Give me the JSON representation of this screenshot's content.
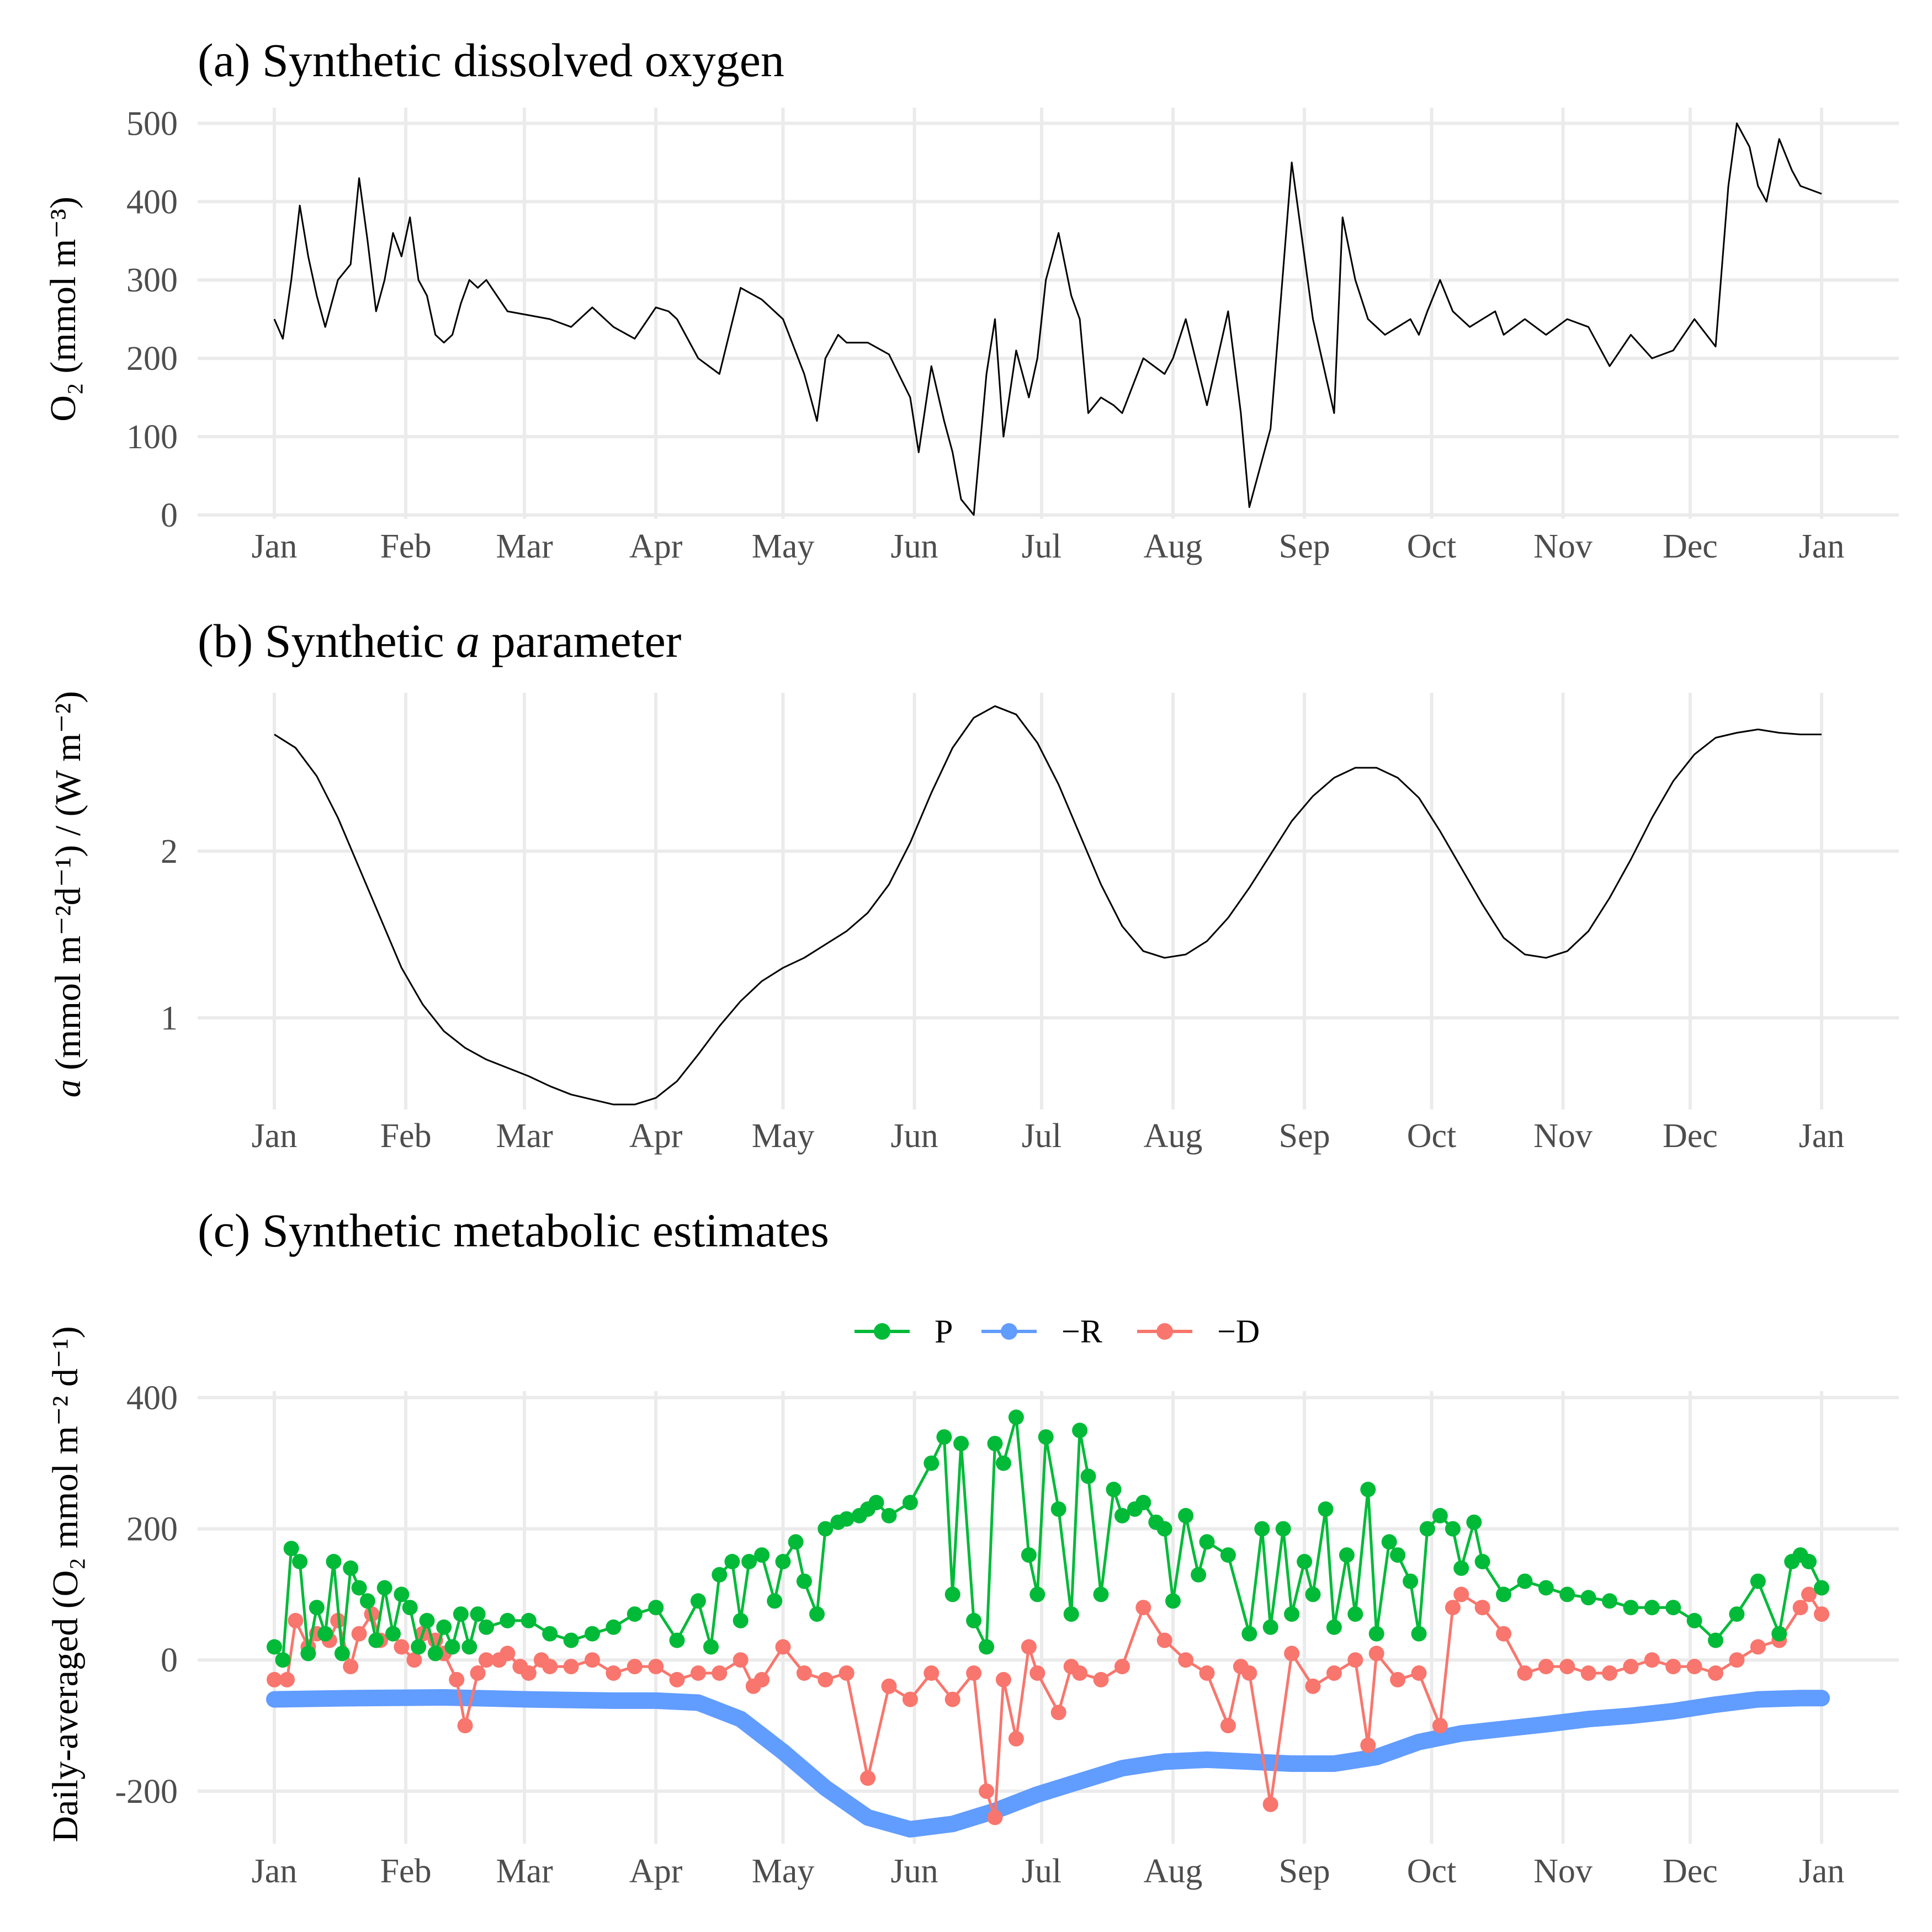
{
  "months": [
    "Jan",
    "Feb",
    "Mar",
    "Apr",
    "May",
    "Jun",
    "Jul",
    "Aug",
    "Sep",
    "Oct",
    "Nov",
    "Dec",
    "Jan"
  ],
  "colors": {
    "P": "#00BA38",
    "R": "#619CFF",
    "D": "#F8766D",
    "line": "#000000"
  },
  "panels": [
    {
      "title": "(a) Synthetic dissolved oxygen",
      "ylabel": "O₂ (mmol m⁻³)"
    },
    {
      "title_prefix": "(b) Synthetic ",
      "title_italic": "a",
      "title_suffix": " parameter",
      "ylabel_italic": "a",
      "ylabel": " (mmol m⁻²d⁻¹) / (W m⁻²)"
    },
    {
      "title": "(c) Synthetic metabolic estimates",
      "ylabel": "Daily-averaged (O₂ mmol m⁻² d⁻¹)"
    }
  ],
  "legend": [
    "P",
    "−R",
    "−D"
  ],
  "chart_data": [
    {
      "type": "line",
      "title": "(a) Synthetic dissolved oxygen",
      "ylabel": "O₂ (mmol m⁻³)",
      "yticks": [
        0,
        100,
        200,
        300,
        400,
        500
      ],
      "ylim": [
        -5,
        520
      ],
      "xlim": [
        0,
        365
      ],
      "series": [
        {
          "x": [
            0,
            2,
            4,
            6,
            8,
            10,
            12,
            15,
            18,
            20,
            22,
            24,
            26,
            28,
            30,
            32,
            34,
            36,
            38,
            40,
            42,
            44,
            46,
            48,
            50,
            55,
            60,
            65,
            70,
            75,
            80,
            85,
            90,
            93,
            95,
            100,
            105,
            110,
            115,
            120,
            125,
            128,
            130,
            133,
            135,
            140,
            145,
            150,
            152,
            155,
            158,
            160,
            162,
            165,
            168,
            170,
            172,
            175,
            178,
            180,
            182,
            185,
            188,
            190,
            192,
            195,
            198,
            200,
            205,
            210,
            212,
            215,
            220,
            225,
            228,
            230,
            235,
            240,
            245,
            250,
            252,
            255,
            258,
            262,
            265,
            268,
            270,
            272,
            275,
            278,
            280,
            282,
            285,
            288,
            290,
            295,
            300,
            305,
            310,
            315,
            320,
            325,
            330,
            335,
            340,
            343,
            345,
            348,
            350,
            352,
            355,
            358,
            360,
            365
          ],
          "y": [
            250,
            225,
            300,
            395,
            330,
            280,
            240,
            300,
            320,
            430,
            350,
            260,
            300,
            360,
            330,
            380,
            300,
            280,
            230,
            220,
            230,
            270,
            300,
            290,
            300,
            260,
            255,
            250,
            240,
            265,
            240,
            225,
            265,
            260,
            250,
            200,
            180,
            290,
            275,
            250,
            180,
            120,
            200,
            230,
            220,
            220,
            205,
            150,
            80,
            190,
            120,
            80,
            20,
            0,
            180,
            250,
            100,
            210,
            150,
            200,
            300,
            360,
            280,
            250,
            130,
            150,
            140,
            130,
            200,
            180,
            200,
            250,
            140,
            260,
            130,
            10,
            110,
            450,
            250,
            130,
            380,
            300,
            250,
            230,
            240,
            250,
            230,
            260,
            300,
            260,
            250,
            240,
            250,
            260,
            230,
            250,
            230,
            250,
            240,
            190,
            230,
            200,
            210,
            250,
            215,
            420,
            500,
            470,
            420,
            400,
            480,
            440,
            420,
            410
          ]
        }
      ]
    },
    {
      "type": "line",
      "title": "(b) Synthetic a parameter",
      "ylabel": "a (mmol m⁻²d⁻¹) / (W m⁻²)",
      "yticks": [
        1,
        2
      ],
      "ylim": [
        0.45,
        2.95
      ],
      "xlim": [
        0,
        365
      ],
      "series": [
        {
          "x": [
            0,
            5,
            10,
            15,
            20,
            25,
            30,
            35,
            40,
            45,
            50,
            55,
            60,
            65,
            70,
            75,
            80,
            85,
            90,
            95,
            100,
            105,
            110,
            115,
            120,
            125,
            130,
            135,
            140,
            145,
            150,
            155,
            160,
            165,
            170,
            175,
            180,
            185,
            190,
            195,
            200,
            205,
            210,
            215,
            220,
            225,
            230,
            235,
            240,
            245,
            250,
            255,
            260,
            265,
            270,
            275,
            280,
            285,
            290,
            295,
            300,
            305,
            310,
            315,
            320,
            325,
            330,
            335,
            340,
            345,
            350,
            355,
            360,
            365
          ],
          "y": [
            2.7,
            2.62,
            2.45,
            2.2,
            1.9,
            1.6,
            1.3,
            1.08,
            0.92,
            0.82,
            0.75,
            0.7,
            0.65,
            0.59,
            0.54,
            0.51,
            0.48,
            0.48,
            0.52,
            0.62,
            0.78,
            0.95,
            1.1,
            1.22,
            1.3,
            1.36,
            1.44,
            1.52,
            1.63,
            1.8,
            2.05,
            2.35,
            2.62,
            2.8,
            2.87,
            2.82,
            2.65,
            2.4,
            2.1,
            1.8,
            1.55,
            1.4,
            1.36,
            1.38,
            1.46,
            1.6,
            1.78,
            1.98,
            2.18,
            2.33,
            2.44,
            2.5,
            2.5,
            2.44,
            2.32,
            2.12,
            1.9,
            1.68,
            1.48,
            1.38,
            1.36,
            1.4,
            1.52,
            1.72,
            1.95,
            2.2,
            2.42,
            2.58,
            2.68,
            2.71,
            2.73,
            2.71,
            2.7,
            2.7
          ]
        }
      ]
    },
    {
      "type": "line",
      "title": "(c) Synthetic metabolic estimates",
      "ylabel": "Daily-averaged (O₂ mmol m⁻² d⁻¹)",
      "yticks": [
        -200,
        0,
        200,
        400
      ],
      "ylim": [
        -280,
        410
      ],
      "xlim": [
        0,
        365
      ],
      "series": [
        {
          "name": "P",
          "x": [
            0,
            2,
            4,
            6,
            8,
            10,
            12,
            14,
            16,
            18,
            20,
            22,
            24,
            26,
            28,
            30,
            32,
            34,
            36,
            38,
            40,
            42,
            44,
            46,
            48,
            50,
            55,
            60,
            65,
            70,
            75,
            80,
            85,
            90,
            95,
            100,
            103,
            105,
            108,
            110,
            112,
            115,
            118,
            120,
            123,
            125,
            128,
            130,
            133,
            135,
            138,
            140,
            142,
            145,
            150,
            155,
            158,
            160,
            162,
            165,
            168,
            170,
            172,
            175,
            178,
            180,
            182,
            185,
            188,
            190,
            192,
            195,
            198,
            200,
            203,
            205,
            208,
            210,
            212,
            215,
            218,
            220,
            225,
            230,
            233,
            235,
            238,
            240,
            243,
            245,
            248,
            250,
            253,
            255,
            258,
            260,
            263,
            265,
            268,
            270,
            272,
            275,
            278,
            280,
            283,
            285,
            290,
            295,
            300,
            305,
            310,
            315,
            320,
            325,
            330,
            335,
            340,
            345,
            350,
            355,
            358,
            360,
            362,
            365
          ],
          "y": [
            20,
            0,
            170,
            150,
            10,
            80,
            40,
            150,
            10,
            140,
            110,
            90,
            30,
            110,
            40,
            100,
            80,
            20,
            60,
            10,
            50,
            20,
            70,
            20,
            70,
            50,
            60,
            60,
            40,
            30,
            40,
            50,
            70,
            80,
            30,
            90,
            20,
            130,
            150,
            60,
            150,
            160,
            90,
            150,
            180,
            120,
            70,
            200,
            210,
            215,
            220,
            230,
            240,
            220,
            240,
            300,
            340,
            100,
            330,
            60,
            20,
            330,
            300,
            370,
            160,
            100,
            340,
            230,
            70,
            350,
            280,
            100,
            260,
            220,
            230,
            240,
            210,
            200,
            90,
            220,
            130,
            180,
            160,
            40,
            200,
            50,
            200,
            70,
            150,
            100,
            230,
            50,
            160,
            70,
            260,
            40,
            180,
            160,
            120,
            40,
            200,
            220,
            200,
            140,
            210,
            150,
            100,
            120,
            110,
            100,
            95,
            90,
            80,
            80,
            80,
            60,
            30,
            70,
            120,
            40,
            150,
            160,
            150,
            110
          ]
        },
        {
          "name": "−R",
          "x": [
            0,
            20,
            40,
            60,
            80,
            90,
            100,
            110,
            120,
            130,
            140,
            150,
            160,
            170,
            180,
            190,
            200,
            210,
            220,
            230,
            240,
            250,
            260,
            270,
            280,
            290,
            300,
            310,
            320,
            330,
            340,
            350,
            360,
            365
          ],
          "y": [
            -60,
            -58,
            -57,
            -60,
            -62,
            -62,
            -65,
            -90,
            -140,
            -195,
            -240,
            -258,
            -250,
            -230,
            -205,
            -185,
            -165,
            -155,
            -152,
            -155,
            -158,
            -158,
            -148,
            -125,
            -112,
            -105,
            -98,
            -90,
            -85,
            -78,
            -68,
            -60,
            -58,
            -58
          ]
        },
        {
          "name": "−D",
          "x": [
            0,
            3,
            5,
            8,
            10,
            13,
            15,
            18,
            20,
            23,
            25,
            28,
            30,
            33,
            35,
            38,
            40,
            43,
            45,
            48,
            50,
            53,
            55,
            58,
            60,
            63,
            65,
            70,
            75,
            80,
            85,
            90,
            95,
            100,
            105,
            110,
            113,
            115,
            120,
            125,
            130,
            135,
            140,
            145,
            150,
            155,
            160,
            165,
            168,
            170,
            172,
            175,
            178,
            180,
            185,
            188,
            190,
            195,
            200,
            205,
            210,
            215,
            220,
            225,
            228,
            230,
            235,
            240,
            245,
            250,
            255,
            258,
            260,
            265,
            270,
            275,
            278,
            280,
            285,
            290,
            295,
            300,
            305,
            310,
            315,
            320,
            325,
            330,
            335,
            340,
            345,
            350,
            355,
            360,
            362,
            365
          ],
          "y": [
            -30,
            -30,
            60,
            20,
            40,
            30,
            60,
            -10,
            40,
            70,
            30,
            40,
            20,
            0,
            40,
            30,
            10,
            -30,
            -100,
            -20,
            0,
            0,
            10,
            -10,
            -20,
            0,
            -10,
            -10,
            0,
            -20,
            -10,
            -10,
            -30,
            -20,
            -20,
            0,
            -40,
            -30,
            20,
            -20,
            -30,
            -20,
            -180,
            -40,
            -60,
            -20,
            -60,
            -20,
            -200,
            -240,
            -30,
            -120,
            20,
            -20,
            -80,
            -10,
            -20,
            -30,
            -10,
            80,
            30,
            0,
            -20,
            -100,
            -10,
            -20,
            -220,
            10,
            -40,
            -20,
            0,
            -130,
            10,
            -30,
            -20,
            -100,
            80,
            100,
            80,
            40,
            -20,
            -10,
            -10,
            -20,
            -20,
            -10,
            0,
            -10,
            -10,
            -20,
            0,
            20,
            30,
            80,
            100,
            70
          ]
        }
      ]
    }
  ]
}
